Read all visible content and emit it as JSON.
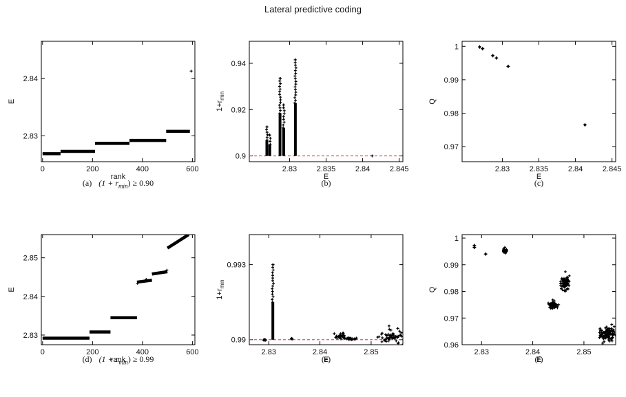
{
  "title": "Lateral predictive coding",
  "chart_data": [
    {
      "id": "a",
      "type": "scatter",
      "caption_prefix": "(a)",
      "caption_math": "(1 + r",
      "caption_sub": "min",
      "caption_suffix": ") ≥ 0.90",
      "xlabel": "rank",
      "ylabel": "E",
      "xlim": [
        -5,
        610
      ],
      "ylim": [
        2.8255,
        2.8465
      ],
      "xticks": [
        0,
        200,
        400,
        600
      ],
      "xtick_labels": [
        "0",
        "200",
        "400",
        "600"
      ],
      "yticks": [
        2.83,
        2.84
      ],
      "ytick_labels": [
        "2.83",
        "2.84"
      ],
      "steps": [
        {
          "x0": 0,
          "x1": 72,
          "y": 2.8269
        },
        {
          "x0": 72,
          "x1": 210,
          "y": 2.8273
        },
        {
          "x0": 210,
          "x1": 348,
          "y": 2.8287
        },
        {
          "x0": 348,
          "x1": 495,
          "y": 2.8292
        },
        {
          "x0": 495,
          "x1": 590,
          "y": 2.8308
        }
      ],
      "points": [
        [
          595,
          2.8413
        ]
      ]
    },
    {
      "id": "b",
      "type": "scatter",
      "caption_prefix": "(b)",
      "xlabel": "E",
      "ylabel": "1+r",
      "ylabel_sub": "min",
      "xlim": [
        2.8245,
        2.8455
      ],
      "ylim": [
        0.8975,
        0.9495
      ],
      "xticks": [
        2.83,
        2.835,
        2.84,
        2.845
      ],
      "xtick_labels": [
        "2.83",
        "2.835",
        "2.84",
        "2.845"
      ],
      "yticks": [
        0.9,
        0.92,
        0.94
      ],
      "ytick_labels": [
        "0.9",
        "0.92",
        "0.94"
      ],
      "hline": 0.9,
      "hline_color": "#e03030",
      "clusters": [
        {
          "x": 2.8269,
          "ymin": 0.9,
          "ymax": 0.9125
        },
        {
          "x": 2.8273,
          "ymin": 0.9,
          "ymax": 0.909
        },
        {
          "x": 2.8287,
          "ymin": 0.9,
          "ymax": 0.9335
        },
        {
          "x": 2.8292,
          "ymin": 0.9,
          "ymax": 0.922
        },
        {
          "x": 2.8308,
          "ymin": 0.9,
          "ymax": 0.9415
        }
      ],
      "points": [
        [
          2.8413,
          0.9
        ]
      ]
    },
    {
      "id": "c",
      "type": "scatter",
      "caption_prefix": "(c)",
      "xlabel": "E",
      "ylabel": "Q",
      "xlim": [
        2.8245,
        2.8455
      ],
      "ylim": [
        0.9655,
        1.0015
      ],
      "xticks": [
        2.83,
        2.835,
        2.84,
        2.845
      ],
      "xtick_labels": [
        "2.83",
        "2.835",
        "2.84",
        "2.845"
      ],
      "yticks": [
        0.97,
        0.98,
        0.99,
        1.0
      ],
      "ytick_labels": [
        "0.97",
        "0.98",
        "0.99",
        "1"
      ],
      "points": [
        [
          2.8269,
          0.9998
        ],
        [
          2.8273,
          0.9993
        ],
        [
          2.8287,
          0.9972
        ],
        [
          2.8292,
          0.9965
        ],
        [
          2.8308,
          0.994
        ],
        [
          2.8413,
          0.9765
        ]
      ]
    },
    {
      "id": "d",
      "type": "scatter",
      "caption_prefix": "(d)",
      "caption_math": "(1 + r",
      "caption_sub": "min",
      "caption_suffix": ") ≥ 0.99",
      "xlabel": "rank",
      "ylabel": "E",
      "xlim": [
        -5,
        610
      ],
      "ylim": [
        2.8275,
        2.856
      ],
      "xticks": [
        0,
        200,
        400,
        600
      ],
      "xtick_labels": [
        "0",
        "200",
        "400",
        "600"
      ],
      "yticks": [
        2.83,
        2.84,
        2.85
      ],
      "ytick_labels": [
        "2.83",
        "2.84",
        "2.85"
      ],
      "steps": [
        {
          "x0": 0,
          "x1": 188,
          "y": 2.8292
        },
        {
          "x0": 188,
          "x1": 272,
          "y": 2.8308
        },
        {
          "x0": 272,
          "x1": 378,
          "y": 2.8345
        },
        {
          "x0": 378,
          "x1": 438,
          "y": 2.8437,
          "y1": 2.8442
        },
        {
          "x0": 438,
          "x1": 500,
          "y": 2.8458,
          "y1": 2.8464
        },
        {
          "x0": 500,
          "x1": 585,
          "y": 2.8525,
          "y1": 2.856
        }
      ],
      "points": [
        [
          380,
          2.8434
        ],
        [
          498,
          2.8468
        ],
        [
          415,
          2.8444
        ]
      ]
    },
    {
      "id": "e",
      "type": "scatter",
      "caption_prefix": "(e)",
      "xlabel": "E",
      "ylabel": "1+r",
      "ylabel_sub": "min",
      "xlim": [
        2.8262,
        2.8562
      ],
      "ylim": [
        0.9898,
        0.9942
      ],
      "xticks": [
        2.83,
        2.84,
        2.85
      ],
      "xtick_labels": [
        "2.83",
        "2.84",
        "2.85"
      ],
      "yticks": [
        0.99,
        0.993
      ],
      "ytick_labels": [
        "0.99",
        "0.993"
      ],
      "hline": 0.99,
      "hline_color": "#e03030",
      "clusters": [
        {
          "x": 2.8308,
          "ymin": 0.99,
          "ymax": 0.993,
          "dense_to": 0.9915
        },
        {
          "x": 2.8345,
          "ymin": 0.99,
          "ymax": 0.99005
        }
      ],
      "blobs": [
        {
          "cx": 2.8292,
          "cy": 0.99,
          "sx": 0.0002,
          "sy": 2e-05,
          "n": 6
        },
        {
          "cx": 2.844,
          "cy": 0.99015,
          "sx": 0.0005,
          "sy": 8e-05,
          "n": 30
        },
        {
          "cx": 2.8462,
          "cy": 0.99003,
          "sx": 0.0006,
          "sy": 3e-05,
          "n": 25
        },
        {
          "cx": 2.8542,
          "cy": 0.9901,
          "sx": 0.0012,
          "sy": 0.00012,
          "n": 60
        }
      ],
      "points": [
        [
          2.8535,
          0.99055
        ],
        [
          2.8552,
          0.99045
        ]
      ]
    },
    {
      "id": "f",
      "type": "scatter",
      "caption_prefix": "(f)",
      "xlabel": "E",
      "ylabel": "Q",
      "xlim": [
        2.8262,
        2.8562
      ],
      "ylim": [
        0.96,
        1.0013
      ],
      "xticks": [
        2.83,
        2.84,
        2.85
      ],
      "xtick_labels": [
        "2.83",
        "2.84",
        "2.85"
      ],
      "yticks": [
        0.96,
        0.97,
        0.98,
        0.99,
        1.0
      ],
      "ytick_labels": [
        "0.96",
        "0.97",
        "0.98",
        "0.99",
        "1"
      ],
      "points": [
        [
          2.8286,
          0.9972
        ],
        [
          2.8286,
          0.9965
        ],
        [
          2.8308,
          0.994
        ]
      ],
      "blobs": [
        {
          "cx": 2.8345,
          "cy": 0.9951,
          "sx": 0.0002,
          "sy": 0.0005,
          "n": 30
        },
        {
          "cx": 2.844,
          "cy": 0.9749,
          "sx": 0.0004,
          "sy": 0.0005,
          "n": 50
        },
        {
          "cx": 2.8463,
          "cy": 0.9832,
          "sx": 0.0004,
          "sy": 0.0013,
          "n": 70
        },
        {
          "cx": 2.8545,
          "cy": 0.964,
          "sx": 0.0008,
          "sy": 0.0012,
          "n": 110
        }
      ]
    }
  ]
}
